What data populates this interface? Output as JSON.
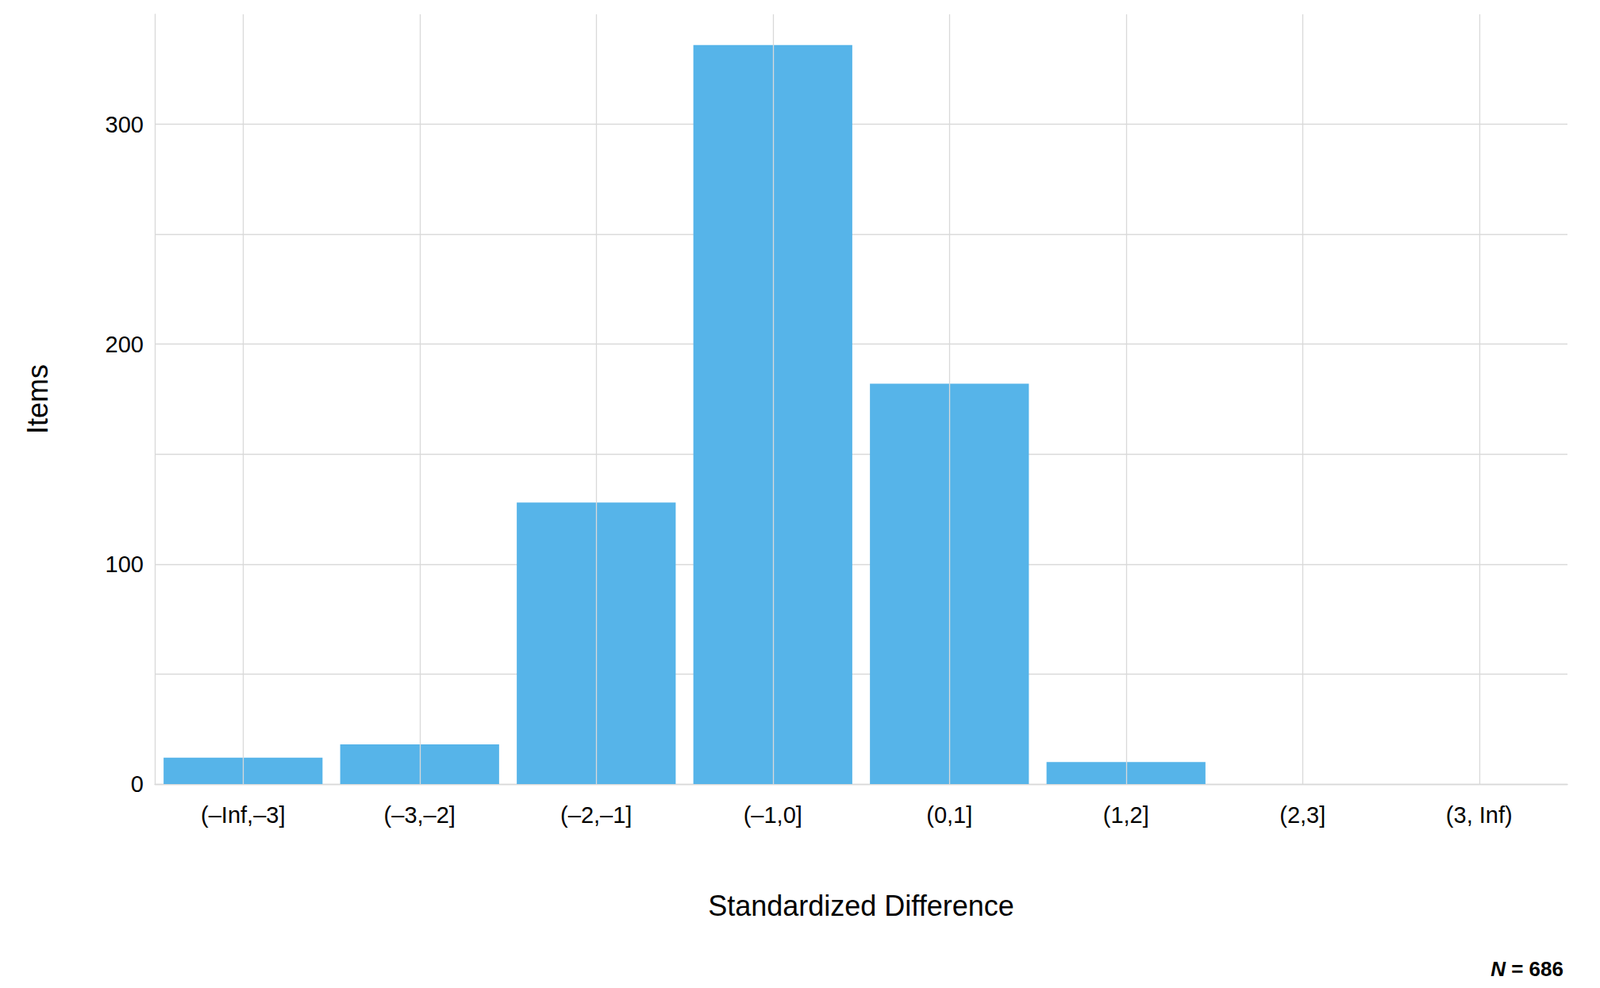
{
  "chart_data": {
    "type": "bar",
    "categories": [
      "(–Inf,–3]",
      "(–3,–2]",
      "(–2,–1]",
      "(–1,0]",
      "(0,1]",
      "(1,2]",
      "(2,3]",
      "(3, Inf)"
    ],
    "values": [
      12,
      18,
      128,
      336,
      182,
      10,
      0,
      0
    ],
    "color": "#56b4e9",
    "ylim": [
      0,
      350
    ],
    "yticks": [
      0,
      100,
      200,
      300
    ],
    "grid": true,
    "xlabel": "Standardized Difference",
    "ylabel": "Items",
    "annotation": "N = 686"
  }
}
